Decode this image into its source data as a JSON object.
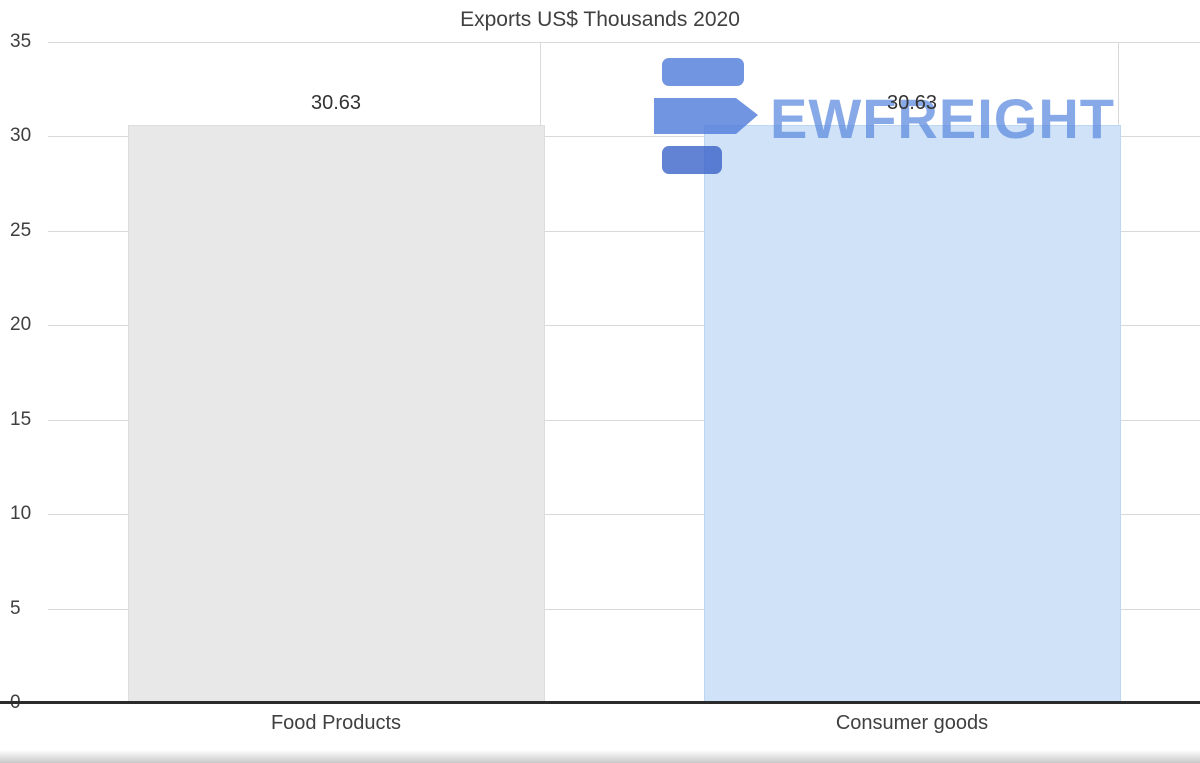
{
  "chart_data": {
    "type": "bar",
    "title": "Exports US$ Thousands 2020",
    "categories": [
      "Food Products",
      "Consumer goods"
    ],
    "values": [
      30.63,
      30.63
    ],
    "data_labels": [
      "30.63",
      "30.63"
    ],
    "ylim": [
      0,
      35
    ],
    "yticks": [
      35,
      30,
      25,
      20,
      15,
      10,
      5,
      0
    ],
    "grid": "horizontal",
    "legend": "none",
    "bar_colors": [
      "#e8e8e8",
      "#cfe2f8"
    ],
    "bar_border_colors": [
      "#dddddd",
      "#bdd6f2"
    ]
  },
  "watermark": {
    "text": "EWFREIGHT",
    "color": "#5b86e0"
  }
}
